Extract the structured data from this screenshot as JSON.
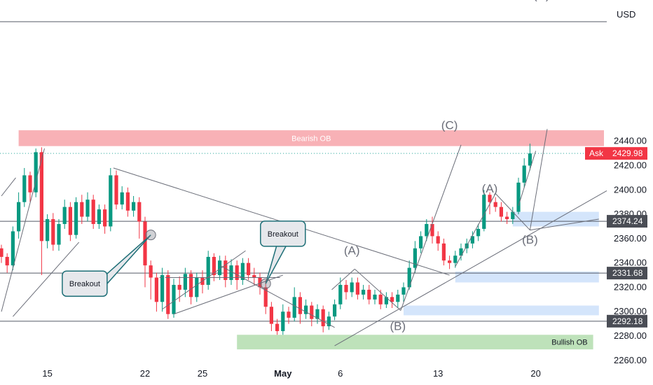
{
  "chart_data": {
    "type": "candlestick",
    "currency": "USD",
    "ylim": [
      2257,
      2556
    ],
    "y_ticks": [
      2260,
      2280,
      2300,
      2320,
      2340,
      2360,
      2380,
      2400,
      2420,
      2440
    ],
    "y_tick_labels": [
      "2260.00",
      "2280.00",
      "2300.00",
      "2320.00",
      "2340.00",
      "2360.00",
      "2380.00",
      "2400.00",
      "2420.00",
      "2440.00"
    ],
    "x_ticks": [
      {
        "label": "15",
        "candle": 8,
        "bold": false
      },
      {
        "label": "22",
        "candle": 25,
        "bold": false
      },
      {
        "label": "25",
        "candle": 35,
        "bold": false
      },
      {
        "label": "May",
        "candle": 49,
        "bold": true
      },
      {
        "label": "6",
        "candle": 59,
        "bold": false
      },
      {
        "label": "13",
        "candle": 76,
        "bold": false
      },
      {
        "label": "20",
        "candle": 93,
        "bold": false
      }
    ],
    "ask": {
      "label": "Ask",
      "value": 2429.98,
      "text": "2429.98",
      "color": "#f23645"
    },
    "levels": [
      {
        "value": 2374.24,
        "text": "2374.24"
      },
      {
        "value": 2331.68,
        "text": "2331.68"
      },
      {
        "value": 2292.18,
        "text": "2292.18"
      }
    ],
    "zones": [
      {
        "name": "Bearish OB",
        "label": "Bearish OB",
        "from_candle": 3,
        "to_candle": 105,
        "high": 2449,
        "low": 2436,
        "fill": "#f7a9ae",
        "text_color": "#ffffff"
      },
      {
        "name": "Bullish OB",
        "label": "Bullish OB",
        "from_candle": 41,
        "to_candle": 103,
        "high": 2281,
        "low": 2269,
        "fill": "#b7dfb3",
        "text_color": "#131722"
      },
      {
        "name": "demand 1",
        "label": "",
        "from_candle": 79,
        "to_candle": 104,
        "high": 2333,
        "low": 2324,
        "fill": "#cfe2fb",
        "text_color": "#131722"
      },
      {
        "name": "demand 2",
        "label": "",
        "from_candle": 70,
        "to_candle": 104,
        "high": 2305,
        "low": 2297,
        "fill": "#cfe2fb",
        "text_color": "#131722"
      },
      {
        "name": "demand 3",
        "label": "",
        "from_candle": 89,
        "to_candle": 104,
        "high": 2382,
        "low": 2370,
        "fill": "#cfe2fb",
        "text_color": "#131722"
      }
    ],
    "wave_labels": [
      {
        "text": "(C)",
        "candle": 78,
        "value": 2450
      },
      {
        "text": "(C)",
        "candle": 94,
        "value": 2557
      },
      {
        "text": "(A)",
        "candle": 61,
        "value": 2347
      },
      {
        "text": "(B)",
        "candle": 69,
        "value": 2285
      },
      {
        "text": "(A)",
        "candle": 85,
        "value": 2398
      },
      {
        "text": "(B)",
        "candle": 92,
        "value": 2356
      }
    ],
    "callouts": [
      {
        "text": "Breakout",
        "box_candle": 14.5,
        "box_value": 2323,
        "target_candle": 26,
        "target_value": 2363
      },
      {
        "text": "Breakout",
        "box_candle": 49,
        "box_value": 2364,
        "target_candle": 46,
        "target_value": 2323
      }
    ],
    "trend_lines": [
      {
        "x1": 0,
        "y1": 2300,
        "x2": 7.5,
        "y2": 2434
      },
      {
        "x1": 0,
        "y1": 2395,
        "x2": 2.5,
        "y2": 2410
      },
      {
        "x1": 2,
        "y1": 2296,
        "x2": 13.5,
        "y2": 2357
      },
      {
        "x1": 19.5,
        "y1": 2418,
        "x2": 78,
        "y2": 2330
      },
      {
        "x1": 28,
        "y1": 2302,
        "x2": 42.5,
        "y2": 2350
      },
      {
        "x1": 29,
        "y1": 2328,
        "x2": 48.5,
        "y2": 2328
      },
      {
        "x1": 29,
        "y1": 2328,
        "x2": 28.5,
        "y2": 2328
      },
      {
        "x1": 27.5,
        "y1": 2328,
        "x2": 28,
        "y2": 2328
      },
      {
        "x1": 38,
        "y1": 2338,
        "x2": 58,
        "y2": 2287
      },
      {
        "x1": 30,
        "y1": 2298,
        "x2": 49,
        "y2": 2330
      },
      {
        "x1": 58,
        "y1": 2272,
        "x2": 106,
        "y2": 2401
      },
      {
        "x1": 61.5,
        "y1": 2335,
        "x2": 69.5,
        "y2": 2301
      },
      {
        "x1": 57.5,
        "y1": 2318,
        "x2": 61.5,
        "y2": 2335
      },
      {
        "x1": 69.5,
        "y1": 2301,
        "x2": 80,
        "y2": 2437
      },
      {
        "x1": 79,
        "y1": 2337,
        "x2": 86,
        "y2": 2397
      },
      {
        "x1": 86,
        "y1": 2397,
        "x2": 92,
        "y2": 2367
      },
      {
        "x1": 92,
        "y1": 2367,
        "x2": 95,
        "y2": 2450
      },
      {
        "x1": 92,
        "y1": 2367,
        "x2": 104,
        "y2": 2376
      },
      {
        "x1": 90,
        "y1": 2387,
        "x2": 93,
        "y2": 2432
      }
    ],
    "candles": [
      [
        2352,
        2345,
        2355,
        2340
      ],
      [
        2345,
        2338,
        2348,
        2332
      ],
      [
        2338,
        2366,
        2370,
        2334
      ],
      [
        2366,
        2390,
        2398,
        2360
      ],
      [
        2390,
        2412,
        2418,
        2386
      ],
      [
        2412,
        2398,
        2415,
        2390
      ],
      [
        2398,
        2431,
        2434,
        2394
      ],
      [
        2431,
        2358,
        2435,
        2330
      ],
      [
        2358,
        2376,
        2380,
        2352
      ],
      [
        2376,
        2355,
        2381,
        2350
      ],
      [
        2355,
        2372,
        2376,
        2350
      ],
      [
        2372,
        2386,
        2392,
        2368
      ],
      [
        2386,
        2363,
        2390,
        2358
      ],
      [
        2363,
        2390,
        2394,
        2360
      ],
      [
        2390,
        2378,
        2396,
        2372
      ],
      [
        2378,
        2392,
        2398,
        2374
      ],
      [
        2392,
        2372,
        2396,
        2368
      ],
      [
        2372,
        2384,
        2388,
        2368
      ],
      [
        2384,
        2370,
        2388,
        2364
      ],
      [
        2370,
        2412,
        2418,
        2366
      ],
      [
        2412,
        2388,
        2416,
        2384
      ],
      [
        2388,
        2398,
        2403,
        2384
      ],
      [
        2398,
        2383,
        2402,
        2378
      ],
      [
        2383,
        2390,
        2395,
        2378
      ],
      [
        2390,
        2374,
        2394,
        2360
      ],
      [
        2374,
        2338,
        2378,
        2320
      ],
      [
        2338,
        2328,
        2342,
        2310
      ],
      [
        2328,
        2308,
        2332,
        2300
      ],
      [
        2308,
        2330,
        2336,
        2300
      ],
      [
        2330,
        2298,
        2334,
        2294
      ],
      [
        2298,
        2322,
        2327,
        2295
      ],
      [
        2322,
        2318,
        2329,
        2308
      ],
      [
        2318,
        2331,
        2336,
        2312
      ],
      [
        2331,
        2312,
        2334,
        2306
      ],
      [
        2312,
        2328,
        2332,
        2308
      ],
      [
        2328,
        2322,
        2334,
        2315
      ],
      [
        2322,
        2345,
        2350,
        2318
      ],
      [
        2345,
        2330,
        2348,
        2325
      ],
      [
        2330,
        2342,
        2346,
        2326
      ],
      [
        2342,
        2326,
        2346,
        2320
      ],
      [
        2326,
        2338,
        2343,
        2322
      ],
      [
        2338,
        2326,
        2342,
        2318
      ],
      [
        2326,
        2340,
        2344,
        2322
      ],
      [
        2340,
        2330,
        2344,
        2326
      ],
      [
        2330,
        2328,
        2336,
        2322
      ],
      [
        2328,
        2320,
        2332,
        2314
      ],
      [
        2320,
        2304,
        2326,
        2298
      ],
      [
        2304,
        2290,
        2308,
        2284
      ],
      [
        2290,
        2284,
        2294,
        2281
      ],
      [
        2284,
        2300,
        2306,
        2281
      ],
      [
        2300,
        2295,
        2304,
        2290
      ],
      [
        2295,
        2312,
        2320,
        2292
      ],
      [
        2312,
        2298,
        2316,
        2290
      ],
      [
        2298,
        2305,
        2310,
        2294
      ],
      [
        2305,
        2294,
        2308,
        2288
      ],
      [
        2294,
        2302,
        2306,
        2290
      ],
      [
        2302,
        2288,
        2305,
        2283
      ],
      [
        2288,
        2296,
        2300,
        2285
      ],
      [
        2296,
        2306,
        2310,
        2293
      ],
      [
        2306,
        2322,
        2328,
        2302
      ],
      [
        2322,
        2316,
        2326,
        2310
      ],
      [
        2316,
        2324,
        2328,
        2312
      ],
      [
        2324,
        2314,
        2328,
        2310
      ],
      [
        2314,
        2318,
        2322,
        2310
      ],
      [
        2318,
        2310,
        2322,
        2306
      ],
      [
        2310,
        2314,
        2318,
        2306
      ],
      [
        2314,
        2306,
        2318,
        2302
      ],
      [
        2306,
        2312,
        2316,
        2303
      ],
      [
        2312,
        2308,
        2316,
        2303
      ],
      [
        2308,
        2314,
        2318,
        2303
      ],
      [
        2314,
        2320,
        2324,
        2308
      ],
      [
        2320,
        2336,
        2342,
        2318
      ],
      [
        2336,
        2352,
        2358,
        2332
      ],
      [
        2352,
        2362,
        2366,
        2348
      ],
      [
        2362,
        2372,
        2376,
        2358
      ],
      [
        2372,
        2362,
        2378,
        2356
      ],
      [
        2362,
        2356,
        2366,
        2350
      ],
      [
        2356,
        2342,
        2360,
        2338
      ],
      [
        2342,
        2340,
        2346,
        2335
      ],
      [
        2340,
        2346,
        2350,
        2336
      ],
      [
        2346,
        2352,
        2356,
        2342
      ],
      [
        2352,
        2356,
        2360,
        2348
      ],
      [
        2356,
        2362,
        2366,
        2352
      ],
      [
        2362,
        2368,
        2372,
        2358
      ],
      [
        2368,
        2396,
        2400,
        2366
      ],
      [
        2396,
        2390,
        2398,
        2380
      ],
      [
        2390,
        2386,
        2394,
        2382
      ],
      [
        2386,
        2378,
        2390,
        2374
      ],
      [
        2378,
        2376,
        2382,
        2372
      ],
      [
        2376,
        2382,
        2386,
        2372
      ],
      [
        2382,
        2406,
        2410,
        2380
      ],
      [
        2406,
        2420,
        2426,
        2402
      ],
      [
        2420,
        2430,
        2438,
        2416
      ]
    ]
  }
}
